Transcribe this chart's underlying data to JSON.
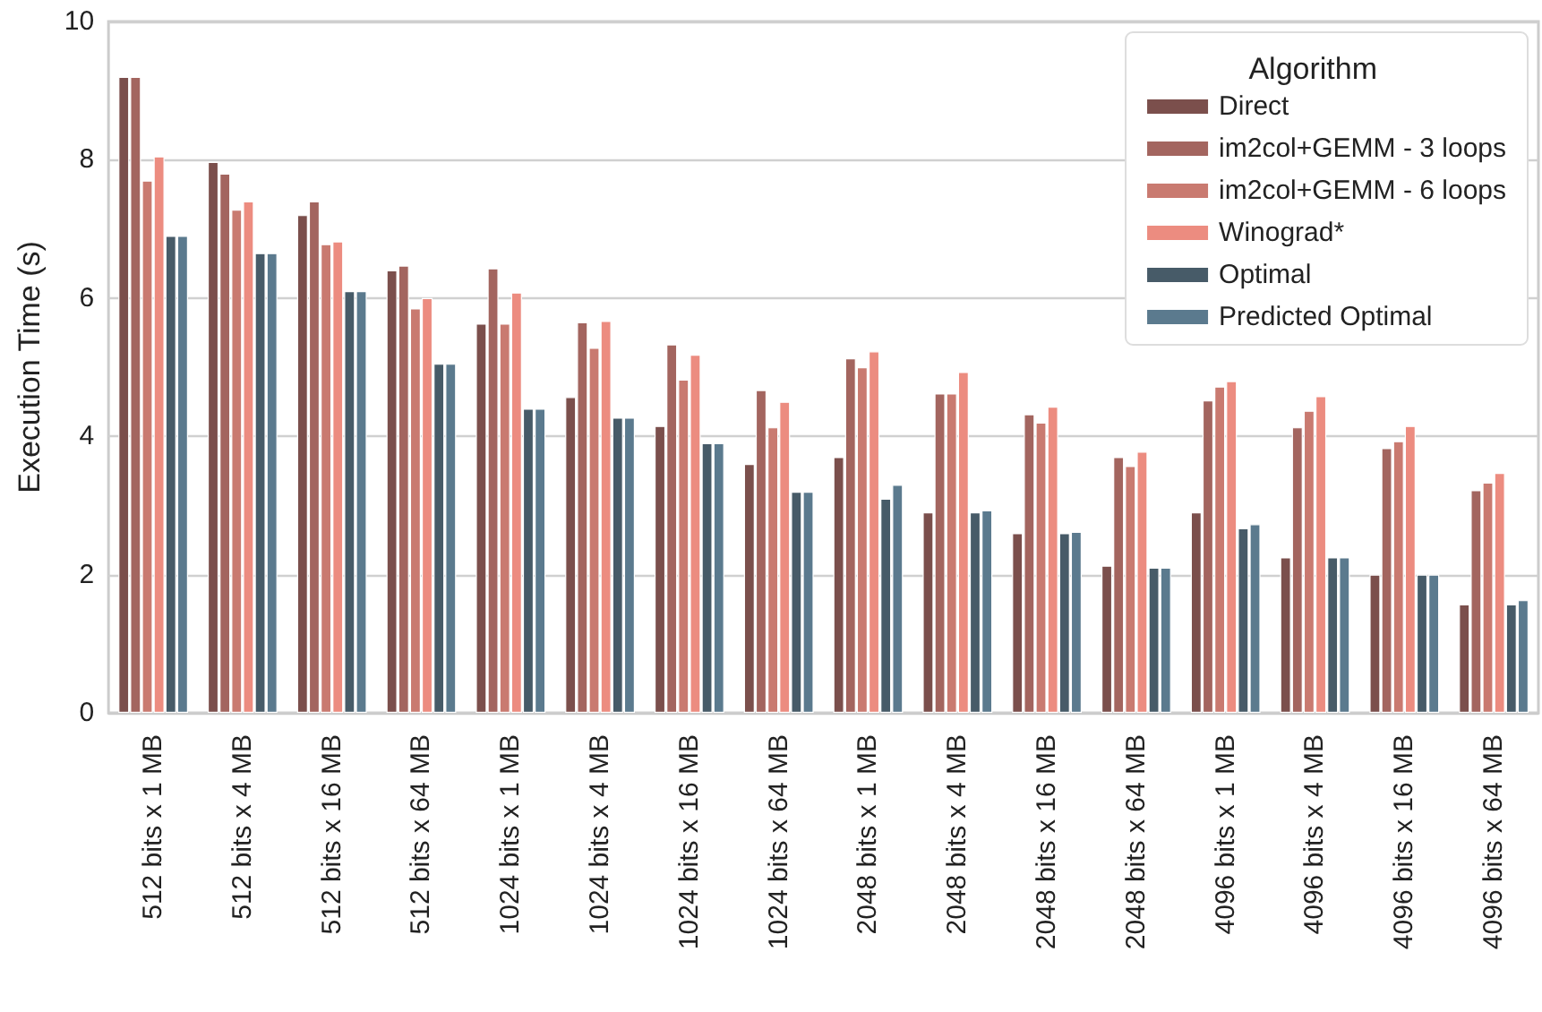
{
  "chart_data": {
    "type": "bar",
    "ylabel": "Execution Time (s)",
    "legend_title": "Algorithm",
    "categories": [
      "512 bits x 1 MB",
      "512 bits x 4 MB",
      "512 bits x 16 MB",
      "512 bits x 64 MB",
      "1024 bits x 1 MB",
      "1024 bits x 4 MB",
      "1024 bits x 16 MB",
      "1024 bits x 64 MB",
      "2048 bits x 1 MB",
      "2048 bits x 4 MB",
      "2048 bits x 16 MB",
      "2048 bits x 64 MB",
      "4096 bits x 1 MB",
      "4096 bits x 4 MB",
      "4096 bits x 16 MB",
      "4096 bits x 64 MB"
    ],
    "series": [
      {
        "name": "Direct",
        "color": "#7b4f4c",
        "values": [
          9.2,
          7.97,
          7.2,
          6.4,
          5.63,
          4.57,
          4.15,
          3.6,
          3.7,
          2.9,
          2.6,
          2.13,
          2.9,
          2.25,
          2.0,
          1.57
        ]
      },
      {
        "name": "im2col+GEMM - 3 loops",
        "color": "#a3655f",
        "values": [
          9.2,
          7.8,
          7.4,
          6.47,
          6.43,
          5.65,
          5.33,
          4.67,
          5.13,
          4.62,
          4.32,
          3.7,
          4.52,
          4.13,
          3.83,
          3.22
        ]
      },
      {
        "name": "im2col+GEMM - 6 loops",
        "color": "#c97a70",
        "values": [
          7.7,
          7.28,
          6.78,
          5.85,
          5.63,
          5.28,
          4.82,
          4.13,
          5.0,
          4.62,
          4.2,
          3.57,
          4.72,
          4.37,
          3.93,
          3.33
        ]
      },
      {
        "name": "Winograd*",
        "color": "#ec8c80",
        "values": [
          8.05,
          7.4,
          6.82,
          6.0,
          6.08,
          5.67,
          5.18,
          4.5,
          5.23,
          4.93,
          4.43,
          3.78,
          4.8,
          4.58,
          4.15,
          3.47
        ]
      },
      {
        "name": "Optimal",
        "color": "#475b68",
        "values": [
          6.9,
          6.65,
          6.1,
          5.05,
          4.4,
          4.27,
          3.9,
          3.2,
          3.1,
          2.9,
          2.6,
          2.1,
          2.67,
          2.25,
          2.0,
          1.57
        ]
      },
      {
        "name": "Predicted Optimal",
        "color": "#5b7a8e",
        "values": [
          6.9,
          6.65,
          6.1,
          5.05,
          4.4,
          4.27,
          3.9,
          3.2,
          3.3,
          2.93,
          2.62,
          2.1,
          2.73,
          2.25,
          2.0,
          1.63
        ]
      }
    ],
    "ylim": [
      0,
      10
    ],
    "yticks": [
      0,
      2,
      4,
      6,
      8,
      10
    ],
    "grid": "y",
    "legend": "top right"
  }
}
